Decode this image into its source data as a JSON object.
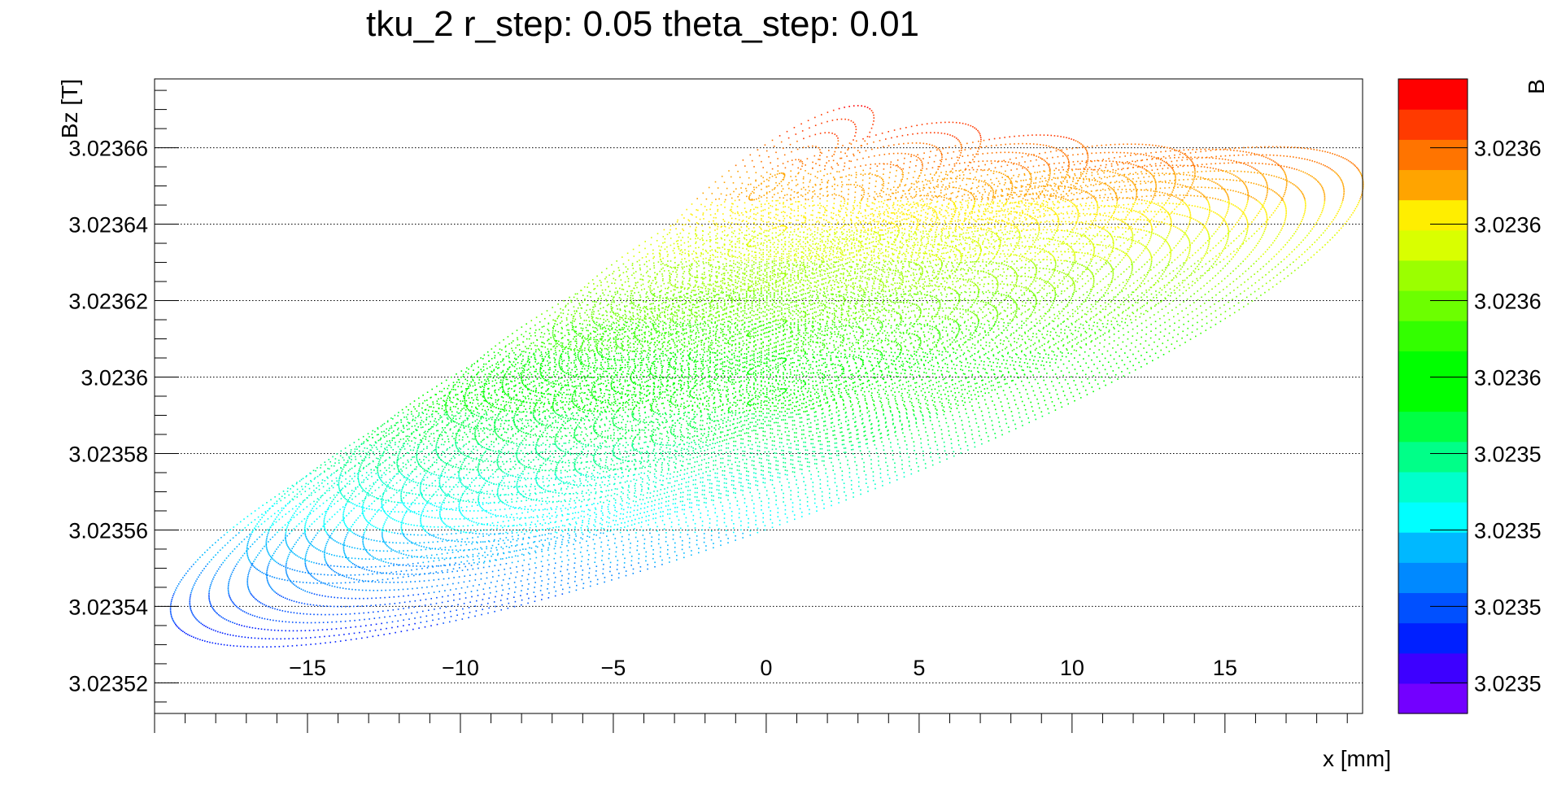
{
  "chart_data": {
    "type": "scatter",
    "title": "tku_2 r_step: 0.05 theta_step: 0.01",
    "xlabel": "x [mm]",
    "ylabel": "Bz [T]",
    "xlim": [
      -20,
      19.5
    ],
    "ylim": [
      3.023512,
      3.023678
    ],
    "x_ticks": [
      -15,
      -10,
      -5,
      0,
      5,
      10,
      15
    ],
    "x_tick_labels": [
      "−15",
      "−10",
      "−5",
      "0",
      "5",
      "10",
      "15"
    ],
    "y_ticks": [
      3.02352,
      3.02354,
      3.02356,
      3.02358,
      3.0236,
      3.02362,
      3.02364,
      3.02366
    ],
    "y_tick_labels": [
      "3.02352",
      "3.02354",
      "3.02356",
      "3.02358",
      "3.0236",
      "3.02362",
      "3.02364",
      "3.02366"
    ],
    "grid": "y-only",
    "colorbar": {
      "range": [
        3.023512,
        3.023678
      ],
      "levels": 20,
      "tick_values": [
        3.02352,
        3.02354,
        3.02356,
        3.02358,
        3.0236,
        3.02362,
        3.02364,
        3.02366
      ],
      "tick_labels": [
        "3.0235",
        "3.0235",
        "3.0235",
        "3.0235",
        "3.0236",
        "3.0236",
        "3.0236",
        "3.0236"
      ],
      "title": "B",
      "colors": [
        "#7300ff",
        "#3d00ff",
        "#0020ff",
        "#0050ff",
        "#0089ff",
        "#00b8ff",
        "#00ffff",
        "#00ffcc",
        "#00ff88",
        "#00ff44",
        "#00ff00",
        "#00ff00",
        "#33ff00",
        "#6cff00",
        "#9bff00",
        "#d9ff00",
        "#ffee00",
        "#ffa400",
        "#ff7400",
        "#ff3a00",
        "#ff0000"
      ]
    },
    "series": [
      {
        "r": 19.5,
        "x_center": 0.0,
        "bz_center": 3.023595,
        "bz_amplitude": 6.8e-05
      },
      {
        "r": 17.0,
        "x_center": 0.0,
        "bz_center": 3.023603,
        "bz_amplitude": 5.9e-05
      },
      {
        "r": 14.0,
        "x_center": 0.0,
        "bz_center": 3.023613,
        "bz_amplitude": 5e-05
      },
      {
        "r": 10.5,
        "x_center": 0.0,
        "bz_center": 3.023625,
        "bz_amplitude": 4e-05
      },
      {
        "r": 7.0,
        "x_center": 0.0,
        "bz_center": 3.023637,
        "bz_amplitude": 3.1e-05
      },
      {
        "r": 3.5,
        "x_center": 0.0,
        "bz_center": 3.02365,
        "bz_amplitude": 2.2e-05
      }
    ]
  }
}
